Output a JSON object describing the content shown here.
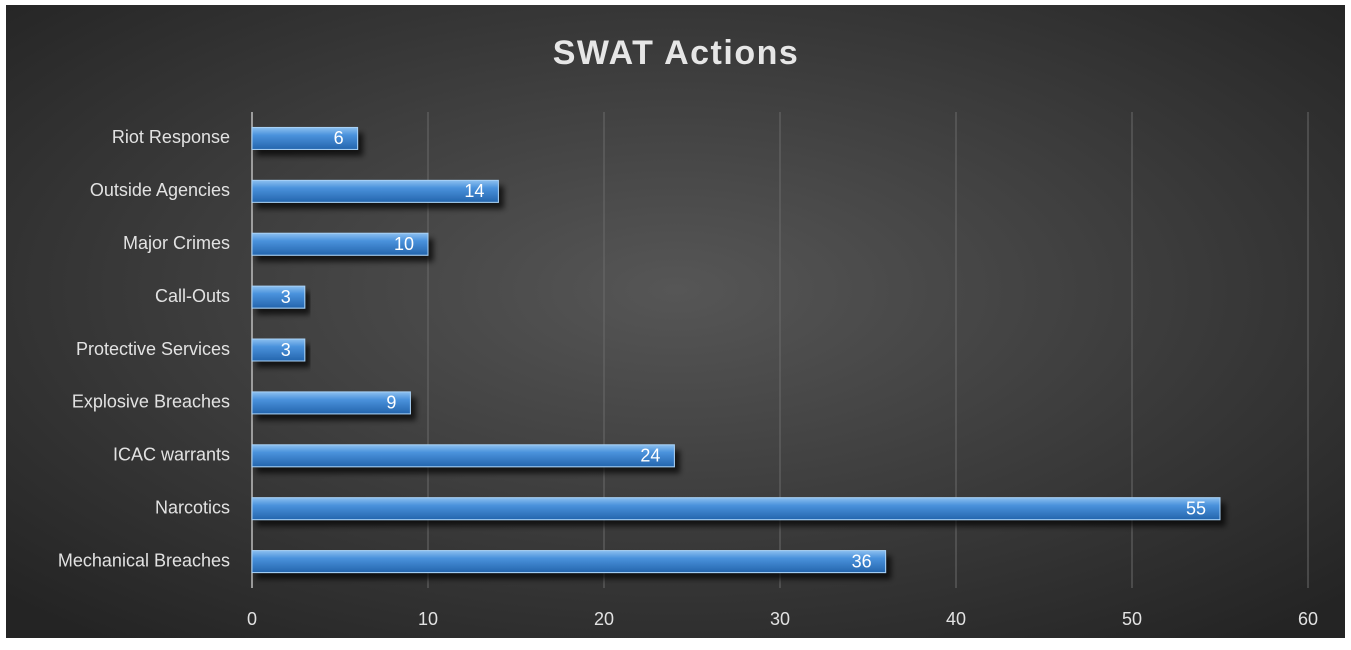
{
  "chart_data": {
    "type": "bar",
    "orientation": "horizontal",
    "title": "SWAT Actions",
    "categories": [
      "Riot Response",
      "Outside Agencies",
      "Major Crimes",
      "Call-Outs",
      "Protective Services",
      "Explosive Breaches",
      "ICAC warrants",
      "Narcotics",
      "Mechanical Breaches"
    ],
    "values": [
      6,
      14,
      10,
      3,
      3,
      9,
      24,
      55,
      36
    ],
    "color": "#3b82cf",
    "xlim": [
      0,
      60
    ],
    "xticks": [
      0,
      10,
      20,
      30,
      40,
      50,
      60
    ],
    "grid": true
  }
}
